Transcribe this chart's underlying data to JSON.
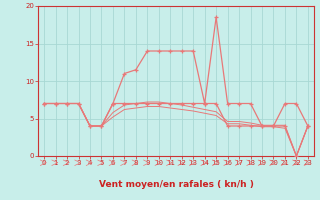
{
  "xlabel": "Vent moyen/en rafales ( kn/h )",
  "xlim": [
    -0.5,
    23.5
  ],
  "ylim": [
    0,
    20
  ],
  "yticks": [
    0,
    5,
    10,
    15,
    20
  ],
  "xticks": [
    0,
    1,
    2,
    3,
    4,
    5,
    6,
    7,
    8,
    9,
    10,
    11,
    12,
    13,
    14,
    15,
    16,
    17,
    18,
    19,
    20,
    21,
    22,
    23
  ],
  "bg_color": "#c8eeea",
  "grid_color": "#a8d8d4",
  "line_color": "#e87878",
  "hours": [
    0,
    1,
    2,
    3,
    4,
    5,
    6,
    7,
    8,
    9,
    10,
    11,
    12,
    13,
    14,
    15,
    16,
    17,
    18,
    19,
    20,
    21,
    22,
    23
  ],
  "rafales": [
    7,
    7,
    7,
    7,
    4,
    4,
    7,
    11,
    11.5,
    14,
    14,
    14,
    14,
    14,
    7,
    18.5,
    7,
    7,
    7,
    4,
    4,
    7,
    7,
    4
  ],
  "moyen": [
    7,
    7,
    7,
    7,
    4,
    4,
    7,
    7,
    7,
    7,
    7,
    7,
    7,
    7,
    7,
    7,
    4,
    4,
    4,
    4,
    4,
    4,
    0,
    4
  ],
  "line3": [
    7,
    7,
    7,
    7,
    4,
    4,
    5.2,
    6.2,
    6.4,
    6.6,
    6.6,
    6.4,
    6.2,
    6.0,
    5.7,
    5.4,
    4.3,
    4.3,
    4.1,
    3.9,
    3.9,
    3.7,
    0,
    4
  ],
  "line4": [
    7,
    7,
    7,
    7,
    4,
    4,
    5.8,
    6.8,
    7.0,
    7.2,
    7.2,
    7.0,
    6.8,
    6.5,
    6.2,
    5.9,
    4.6,
    4.6,
    4.4,
    4.1,
    4.1,
    4.1,
    0,
    4
  ]
}
